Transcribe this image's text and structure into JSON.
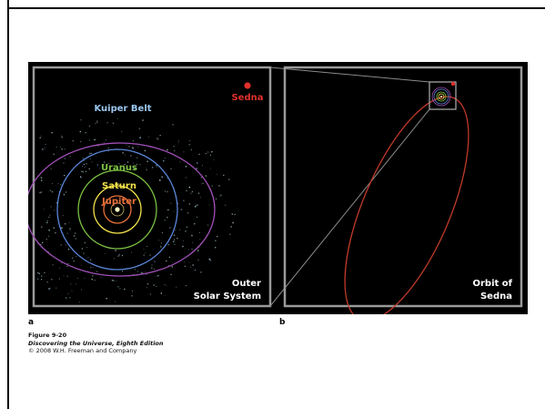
{
  "panel_a": {
    "letter": "a",
    "labels": {
      "sedna": "Sedna",
      "kuiper_belt": "Kuiper Belt",
      "uranus": "Uranus",
      "saturn": "Saturn",
      "jupiter": "Jupiter"
    },
    "title_lines": [
      "Outer",
      "Solar System"
    ]
  },
  "panel_b": {
    "letter": "b",
    "title_lines": [
      "Orbit of",
      "Sedna"
    ]
  },
  "caption": {
    "figure_number": "Figure 9-20",
    "book": "Discovering the Universe, Eighth Edition",
    "copyright": "© 2008 W.H. Freeman and Company"
  },
  "colors": {
    "background": "#000000",
    "panel_border": "#9a9a9a",
    "sedna": "#e0312b",
    "kuiper_belt": "#9cc8ee",
    "uranus": "#7bc043",
    "saturn": "#f2e14a",
    "jupiter": "#e8703a",
    "neptune_orbit": "#5a86d8",
    "pluto_orbit": "#a050b8",
    "sedna_orbit": "#c03a2a"
  }
}
